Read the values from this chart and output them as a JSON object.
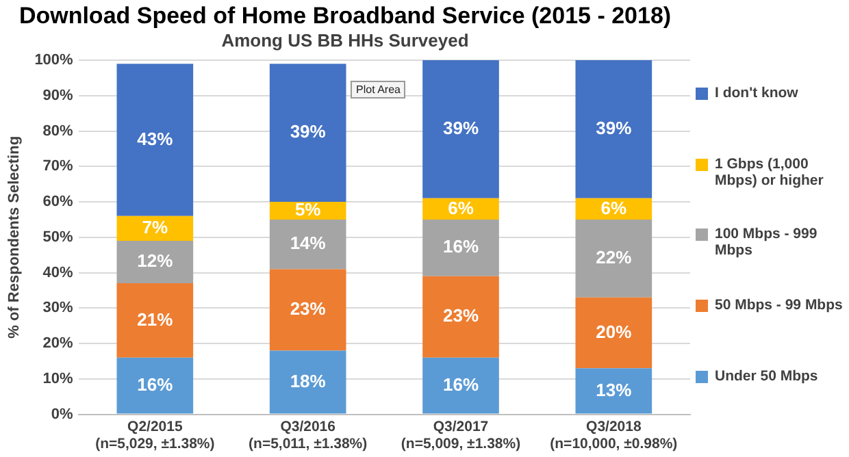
{
  "chart_data": {
    "type": "bar",
    "title": "Download Speed of Home Broadband Service (2015 - 2018)",
    "subtitle": "Among US BB HHs Surveyed",
    "ylabel": "% of Respondents Selecting",
    "categories": [
      "Q2/2015\n(n=5,029, ±1.38%)",
      "Q3/2016\n(n=5,011, ±1.38%)",
      "Q3/2017\n(n=5,009, ±1.38%)",
      "Q3/2018\n(n=10,000, ±0.98%)"
    ],
    "stacked": true,
    "series": [
      {
        "name": "Under 50 Mbps",
        "color": "#5b9bd5",
        "values": [
          16,
          18,
          16,
          13
        ],
        "value_labels": [
          "16%",
          "18%",
          "16%",
          "13%"
        ]
      },
      {
        "name": "50 Mbps - 99 Mbps",
        "color": "#ed7d31",
        "values": [
          21,
          23,
          23,
          20
        ],
        "value_labels": [
          "21%",
          "23%",
          "23%",
          "20%"
        ]
      },
      {
        "name": "100 Mbps - 999 Mbps",
        "color": "#a5a5a5",
        "values": [
          12,
          14,
          16,
          22
        ],
        "value_labels": [
          "12%",
          "14%",
          "16%",
          "22%"
        ]
      },
      {
        "name": "1 Gbps (1,000 Mbps) or higher",
        "color": "#ffc000",
        "values": [
          7,
          5,
          6,
          6
        ],
        "value_labels": [
          "7%",
          "5%",
          "6%",
          "6%"
        ]
      },
      {
        "name": "I don't know",
        "color": "#4472c4",
        "values": [
          43,
          39,
          39,
          39
        ],
        "value_labels": [
          "43%",
          "39%",
          "39%",
          "39%"
        ]
      }
    ],
    "ylim": [
      0,
      100
    ],
    "yticks": [
      {
        "value": 0,
        "label": "0%"
      },
      {
        "value": 10,
        "label": "10%"
      },
      {
        "value": 20,
        "label": "20%"
      },
      {
        "value": 30,
        "label": "30%"
      },
      {
        "value": 40,
        "label": "40%"
      },
      {
        "value": 50,
        "label": "50%"
      },
      {
        "value": 60,
        "label": "60%"
      },
      {
        "value": 70,
        "label": "70%"
      },
      {
        "value": 80,
        "label": "80%"
      },
      {
        "value": 90,
        "label": "90%"
      },
      {
        "value": 100,
        "label": "100%"
      }
    ],
    "grid": "y",
    "legend": "right",
    "annotations": [
      "Plot Area"
    ]
  }
}
